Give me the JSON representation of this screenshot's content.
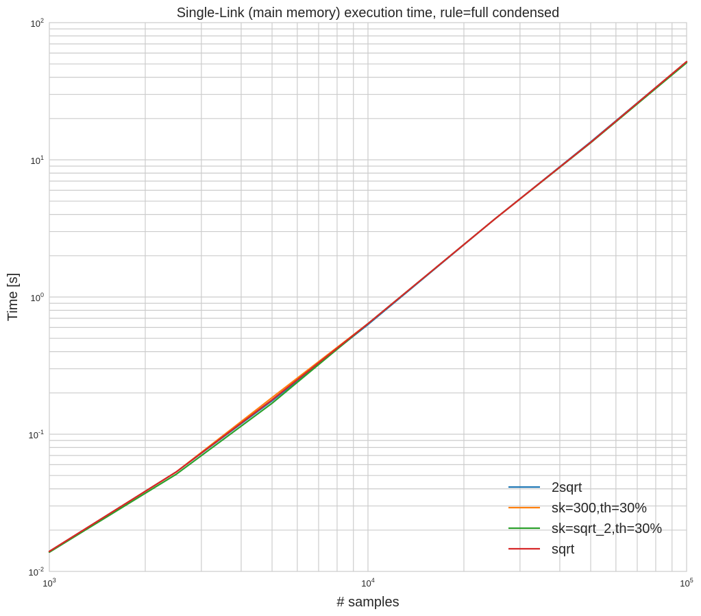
{
  "chart_data": {
    "type": "line",
    "title": "Single-Link (main memory) execution time, rule=full condensed",
    "xlabel": "# samples",
    "ylabel": "Time [s]",
    "xscale": "log",
    "yscale": "log",
    "xlim": [
      1000,
      100000
    ],
    "ylim": [
      0.01,
      100
    ],
    "grid": true,
    "legend_position": "lower-right",
    "x_ticks": [
      {
        "base": "10",
        "exp": "3"
      },
      {
        "base": "10",
        "exp": "4"
      },
      {
        "base": "10",
        "exp": "5"
      }
    ],
    "y_ticks": [
      {
        "base": "10",
        "exp": "-2"
      },
      {
        "base": "10",
        "exp": "-1"
      },
      {
        "base": "10",
        "exp": "0"
      },
      {
        "base": "10",
        "exp": "1"
      },
      {
        "base": "10",
        "exp": "2"
      }
    ],
    "x": [
      1000,
      2500,
      5000,
      10000,
      25000,
      50000,
      100000
    ],
    "series": [
      {
        "name": "2sqrt",
        "color": "#1f77b4",
        "values": [
          0.014,
          0.053,
          0.175,
          0.63,
          3.7,
          13.5,
          52
        ]
      },
      {
        "name": "sk=300,th=30%",
        "color": "#ff7f0e",
        "values": [
          0.014,
          0.053,
          0.185,
          0.64,
          3.7,
          13.4,
          52
        ]
      },
      {
        "name": "sk=sqrt_2,th=30%",
        "color": "#2ca02c",
        "values": [
          0.0138,
          0.051,
          0.168,
          0.64,
          3.7,
          13.3,
          51
        ]
      },
      {
        "name": "sqrt",
        "color": "#d62728",
        "values": [
          0.014,
          0.053,
          0.178,
          0.64,
          3.7,
          13.4,
          52
        ]
      }
    ]
  }
}
